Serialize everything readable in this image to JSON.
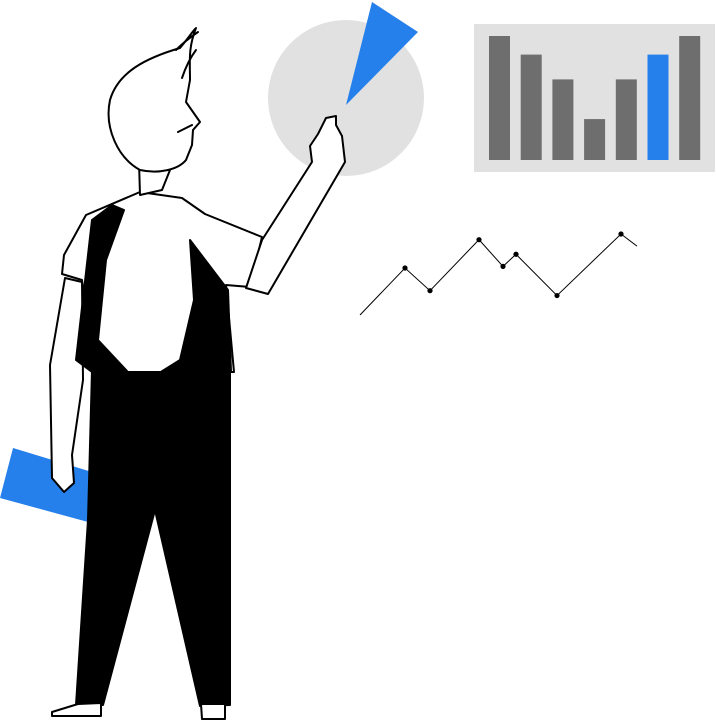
{
  "colors": {
    "background": "#ffffff",
    "accent_blue": "#2680eb",
    "bar_gray": "#6e6e6e",
    "panel_gray": "#e1e1e1",
    "circle_gray": "#e1e1e1",
    "ink": "#000000"
  },
  "illustration": {
    "bar_panel": {
      "bar_count": 7,
      "highlighted_bar_index": 5,
      "relative_values": [
        1.0,
        0.85,
        0.65,
        0.33,
        0.65,
        0.85,
        1.0
      ]
    },
    "pie": {
      "highlighted_slice_fraction": 0.08
    },
    "line": {
      "relative_values": [
        0.0,
        0.58,
        0.3,
        0.93,
        0.6,
        0.75,
        0.24,
        1.0,
        0.85
      ]
    },
    "icons": [
      "pie-chart-icon",
      "bar-chart-icon",
      "line-chart-icon",
      "person-figure",
      "blue-folder"
    ]
  }
}
